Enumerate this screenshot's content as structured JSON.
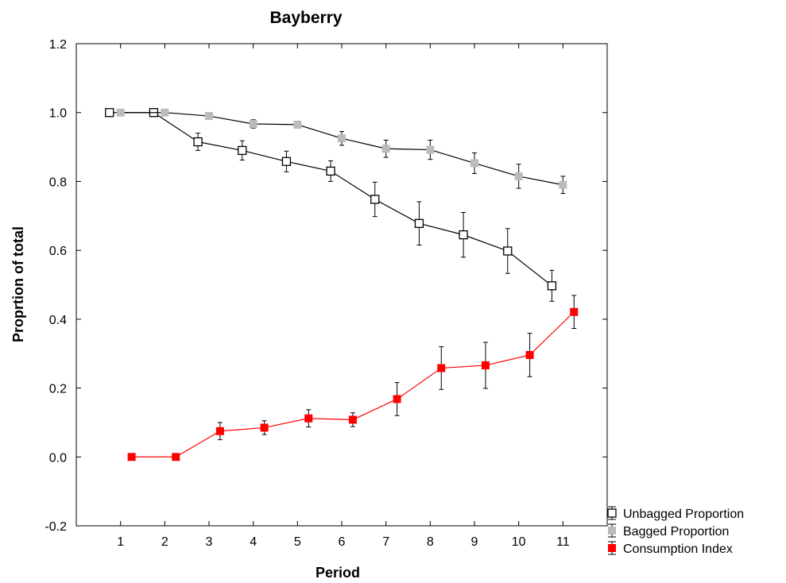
{
  "chart_data": {
    "type": "line",
    "title": "Bayberry",
    "xlabel": "Period",
    "ylabel": "Proprtion of total",
    "xlim": [
      0,
      12
    ],
    "ylim": [
      -0.2,
      1.2
    ],
    "x_ticks": [
      1,
      2,
      3,
      4,
      5,
      6,
      7,
      8,
      9,
      10,
      11
    ],
    "x_tick_labels": [
      "1",
      "2",
      "3",
      "4",
      "5",
      "6",
      "7",
      "8",
      "9",
      "10",
      "11"
    ],
    "y_ticks": [
      -0.2,
      0.0,
      0.2,
      0.4,
      0.6,
      0.8,
      1.0,
      1.2
    ],
    "y_tick_labels": [
      "-0.2",
      "0.0",
      "0.2",
      "0.4",
      "0.6",
      "0.8",
      "1.0",
      "1.2"
    ],
    "grid": false,
    "legend_position": "bottom-right-outside",
    "series": [
      {
        "name": "Unbagged Proportion",
        "marker": "open-square",
        "color": "#000000",
        "line_color": "#000000",
        "x": [
          0.75,
          1.75,
          2.75,
          3.75,
          4.75,
          5.75,
          6.75,
          7.75,
          8.75,
          9.75,
          10.75
        ],
        "y": [
          1.0,
          1.0,
          0.915,
          0.89,
          0.858,
          0.83,
          0.748,
          0.678,
          0.645,
          0.598,
          0.497
        ],
        "error": [
          0,
          0,
          0.025,
          0.028,
          0.03,
          0.03,
          0.05,
          0.063,
          0.065,
          0.065,
          0.045
        ]
      },
      {
        "name": "Bagged Proportion",
        "marker": "filled-square",
        "color": "#bbbbbb",
        "line_color": "#000000",
        "x": [
          1.0,
          2.0,
          3.0,
          4.0,
          5.0,
          6.0,
          7.0,
          8.0,
          9.0,
          10.0,
          11.0
        ],
        "y": [
          1.0,
          1.0,
          0.99,
          0.967,
          0.965,
          0.925,
          0.895,
          0.892,
          0.853,
          0.815,
          0.79
        ],
        "error": [
          0,
          0,
          0,
          0.012,
          0.01,
          0.02,
          0.025,
          0.028,
          0.03,
          0.035,
          0.025
        ]
      },
      {
        "name": "Consumption Index",
        "marker": "filled-square",
        "color": "#ff0000",
        "line_color": "#ff0000",
        "x": [
          1.25,
          2.25,
          3.25,
          4.25,
          5.25,
          6.25,
          7.25,
          8.25,
          9.25,
          10.25,
          11.25
        ],
        "y": [
          0.0,
          0.0,
          0.075,
          0.085,
          0.112,
          0.108,
          0.168,
          0.258,
          0.266,
          0.296,
          0.421
        ],
        "error": [
          0,
          0,
          0.025,
          0.02,
          0.025,
          0.02,
          0.048,
          0.062,
          0.067,
          0.063,
          0.048
        ]
      }
    ]
  }
}
